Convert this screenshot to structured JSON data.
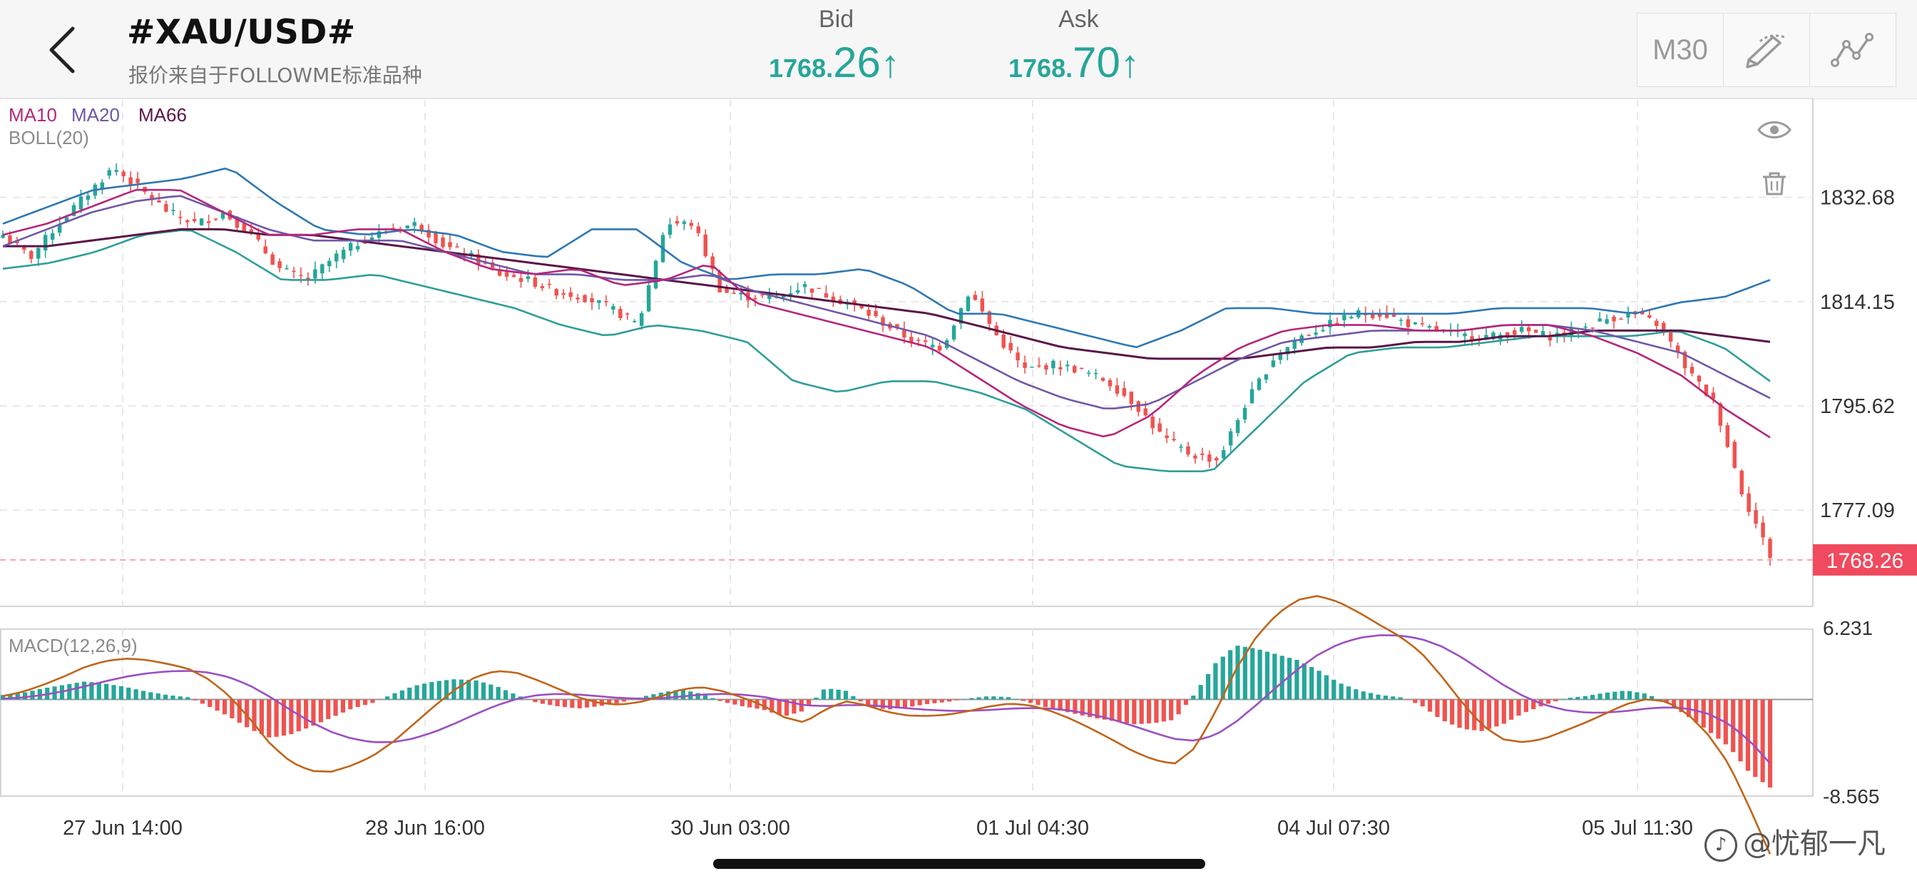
{
  "header": {
    "title": "#XAU/USD#",
    "subtitle": "报价来自于FOLLOWME标准品种",
    "bid": {
      "label": "Bid",
      "int": "1768.",
      "dec": "26",
      "arrow": "↑"
    },
    "ask": {
      "label": "Ask",
      "int": "1768.",
      "dec": "70",
      "arrow": "↑"
    },
    "timeframe": "M30",
    "back_icon": "chevron-left-icon",
    "draw_icon": "pen-icon",
    "indicator_icon": "line-chart-icon"
  },
  "watermark": "@忧郁一凡",
  "colors": {
    "up": "#26a69a",
    "down": "#ef5350",
    "ma10": "#b5267a",
    "ma20": "#6f58a8",
    "ma66": "#5a1648",
    "boll_upper": "#2e78b3",
    "boll_lower": "#2f9e9a",
    "macd_dif": "#c0651a",
    "macd_dea": "#9b4fc1",
    "price_tag": "#f04a5e"
  },
  "chart_data": [
    {
      "type": "candlestick",
      "symbol": "#XAU/USD#",
      "timeframe": "M30",
      "indicator_labels": [
        "MA10",
        "MA20",
        "MA66"
      ],
      "boll_label": "BOLL(20)",
      "y_ticks": [
        1832.68,
        1814.15,
        1795.62,
        1777.09
      ],
      "ylim": [
        1760,
        1850
      ],
      "current_price": 1768.26,
      "current_price_label": "1768.26",
      "x_ticks": [
        "27 Jun 14:00",
        "28 Jun 16:00",
        "30 Jun 03:00",
        "01 Jul 04:30",
        "04 Jul 07:30",
        "05 Jul 11:30"
      ],
      "close_path": [
        1826,
        1822,
        1828,
        1833,
        1838,
        1834,
        1830,
        1828,
        1830,
        1826,
        1820,
        1818,
        1822,
        1825,
        1827,
        1828,
        1824,
        1822,
        1819,
        1818,
        1816,
        1815,
        1813,
        1810,
        1828,
        1828,
        1816,
        1815,
        1815,
        1817,
        1815,
        1813,
        1810,
        1807,
        1806,
        1816,
        1808,
        1802,
        1803,
        1802,
        1800,
        1796,
        1790,
        1787,
        1786,
        1796,
        1804,
        1808,
        1810,
        1812,
        1812,
        1810,
        1809,
        1808,
        1808,
        1809,
        1808,
        1809,
        1811,
        1812,
        1810,
        1802,
        1796,
        1780,
        1769
      ],
      "ma10_path": [
        1826,
        1828,
        1831,
        1834,
        1834,
        1830,
        1826,
        1826,
        1827,
        1827,
        1823,
        1820,
        1819,
        1820,
        1817,
        1818,
        1821,
        1814,
        1812,
        1810,
        1808,
        1806,
        1801,
        1796,
        1792,
        1790,
        1794,
        1801,
        1806,
        1809,
        1810,
        1810,
        1809,
        1809,
        1810,
        1810,
        1808,
        1805,
        1801,
        1795,
        1790
      ],
      "ma20_path": [
        1824,
        1827,
        1830,
        1832,
        1833,
        1830,
        1827,
        1825,
        1825,
        1825,
        1823,
        1821,
        1819,
        1819,
        1818,
        1818,
        1819,
        1816,
        1814,
        1812,
        1810,
        1808,
        1804,
        1800,
        1797,
        1795,
        1796,
        1800,
        1804,
        1807,
        1808,
        1809,
        1809,
        1809,
        1810,
        1810,
        1809,
        1807,
        1805,
        1801,
        1797
      ],
      "ma66_path": [
        1824,
        1824,
        1825,
        1826,
        1827,
        1827,
        1826,
        1826,
        1825,
        1824,
        1823,
        1822,
        1821,
        1820,
        1819,
        1818,
        1817,
        1816,
        1815,
        1814,
        1813,
        1812,
        1810,
        1808,
        1806,
        1805,
        1804,
        1804,
        1804,
        1805,
        1806,
        1806,
        1807,
        1807,
        1808,
        1808,
        1809,
        1809,
        1809,
        1808,
        1807
      ],
      "boll_upper_path": [
        1828,
        1831,
        1834,
        1835,
        1836,
        1838,
        1832,
        1827,
        1826,
        1827,
        1826,
        1823,
        1822,
        1827,
        1827,
        1821,
        1818,
        1819,
        1819,
        1820,
        1817,
        1812,
        1812,
        1810,
        1808,
        1806,
        1809,
        1813,
        1813,
        1812,
        1812,
        1812,
        1812,
        1813,
        1813,
        1813,
        1812,
        1814,
        1815,
        1818
      ],
      "boll_lower_path": [
        1820,
        1821,
        1823,
        1826,
        1827,
        1823,
        1818,
        1818,
        1819,
        1817,
        1815,
        1813,
        1810,
        1808,
        1810,
        1809,
        1807,
        1800,
        1798,
        1800,
        1800,
        1798,
        1795,
        1790,
        1785,
        1784,
        1784,
        1792,
        1800,
        1805,
        1806,
        1806,
        1807,
        1808,
        1808,
        1808,
        1809,
        1806,
        1800
      ]
    },
    {
      "type": "macd",
      "label": "MACD(12,26,9)",
      "y_ticks": [
        6.231,
        -8.565
      ],
      "ylim": [
        -8.565,
        6.231
      ],
      "histogram": [
        0.4,
        0.6,
        1.0,
        1.3,
        1.6,
        1.4,
        1.1,
        0.7,
        0.4,
        0.2,
        -0.6,
        -1.5,
        -2.6,
        -3.4,
        -3.1,
        -2.4,
        -1.6,
        -0.8,
        -0.3,
        0.5,
        1.2,
        1.6,
        1.8,
        1.7,
        1.2,
        0.4,
        -0.3,
        -0.6,
        -0.8,
        -0.6,
        -0.3,
        0.2,
        0.6,
        0.9,
        0.5,
        -0.2,
        -0.6,
        -0.9,
        -1.5,
        -1.0,
        1.0,
        0.8,
        -0.5,
        -0.9,
        -0.7,
        -0.4,
        -0.2,
        0.1,
        0.3,
        0.2,
        -0.3,
        -0.8,
        -1.2,
        -1.6,
        -1.9,
        -2.2,
        -2.1,
        -1.8,
        0.5,
        3.2,
        4.8,
        4.5,
        4.0,
        3.5,
        2.6,
        1.5,
        0.8,
        0.4,
        0.2,
        -0.5,
        -1.8,
        -2.6,
        -2.8,
        -2.2,
        -1.2,
        -0.5,
        0.1,
        0.3,
        0.6,
        0.8,
        0.5,
        -0.3,
        -1.5,
        -2.8,
        -4.2,
        -6.5,
        -7.8
      ]
    }
  ]
}
